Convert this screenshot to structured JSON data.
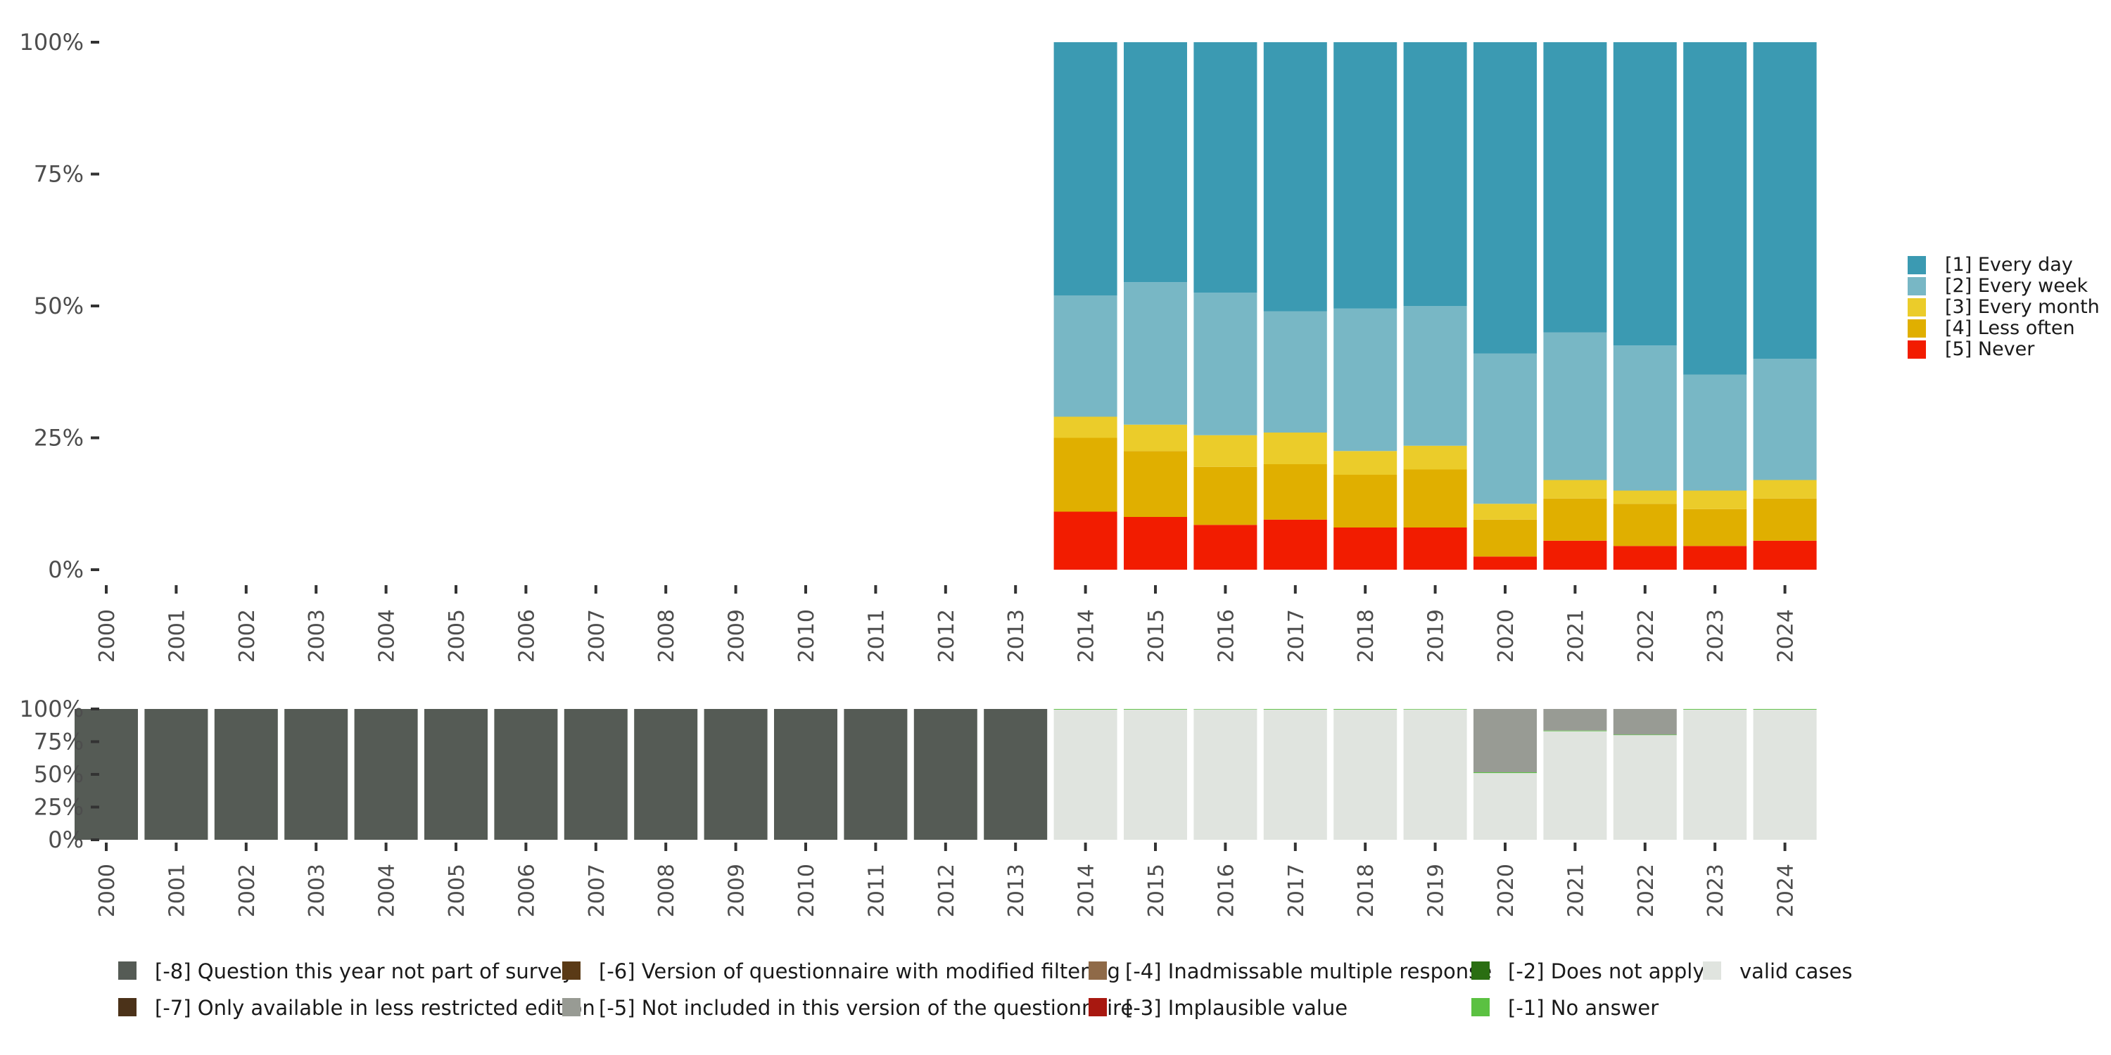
{
  "chart_data": [
    {
      "type": "bar",
      "stacked": true,
      "percent": true,
      "title": "",
      "xlabel": "",
      "ylabel": "",
      "ylim": [
        0,
        100
      ],
      "y_ticks": [
        "0%",
        "25%",
        "50%",
        "75%",
        "100%"
      ],
      "categories": [
        "2000",
        "2001",
        "2002",
        "2003",
        "2004",
        "2005",
        "2006",
        "2007",
        "2008",
        "2009",
        "2010",
        "2011",
        "2012",
        "2013",
        "2014",
        "2015",
        "2016",
        "2017",
        "2018",
        "2019",
        "2020",
        "2021",
        "2022",
        "2023",
        "2024"
      ],
      "legend_position": "right",
      "series": [
        {
          "name": "[5] Never",
          "color": "#f21c00",
          "values": [
            null,
            null,
            null,
            null,
            null,
            null,
            null,
            null,
            null,
            null,
            null,
            null,
            null,
            null,
            11,
            10,
            8.5,
            9.5,
            8,
            8,
            2.5,
            5.5,
            4.5,
            4.5,
            5.5
          ]
        },
        {
          "name": "[4] Less often",
          "color": "#e0af00",
          "values": [
            null,
            null,
            null,
            null,
            null,
            null,
            null,
            null,
            null,
            null,
            null,
            null,
            null,
            null,
            14,
            12.5,
            11,
            10.5,
            10,
            11,
            7,
            8,
            8,
            7,
            8
          ]
        },
        {
          "name": "[3] Every month",
          "color": "#ebcc2a",
          "values": [
            null,
            null,
            null,
            null,
            null,
            null,
            null,
            null,
            null,
            null,
            null,
            null,
            null,
            null,
            4,
            5,
            6,
            6,
            4.5,
            4.5,
            3,
            3.5,
            2.5,
            3.5,
            3.5
          ]
        },
        {
          "name": "[2] Every week",
          "color": "#78b7c5",
          "values": [
            null,
            null,
            null,
            null,
            null,
            null,
            null,
            null,
            null,
            null,
            null,
            null,
            null,
            null,
            23,
            27,
            27,
            23,
            27,
            26.5,
            28.5,
            28,
            27.5,
            22,
            23
          ]
        },
        {
          "name": "[1] Every day",
          "color": "#3b9ab2",
          "values": [
            null,
            null,
            null,
            null,
            null,
            null,
            null,
            null,
            null,
            null,
            null,
            null,
            null,
            null,
            48,
            45.5,
            47.5,
            51,
            50.5,
            50,
            59,
            55,
            57.5,
            63,
            60
          ]
        }
      ]
    },
    {
      "type": "bar",
      "stacked": true,
      "percent": true,
      "title": "",
      "xlabel": "",
      "ylabel": "",
      "ylim": [
        0,
        100
      ],
      "y_ticks": [
        "0%",
        "25%",
        "50%",
        "75%",
        "100%"
      ],
      "categories": [
        "2000",
        "2001",
        "2002",
        "2003",
        "2004",
        "2005",
        "2006",
        "2007",
        "2008",
        "2009",
        "2010",
        "2011",
        "2012",
        "2013",
        "2014",
        "2015",
        "2016",
        "2017",
        "2018",
        "2019",
        "2020",
        "2021",
        "2022",
        "2023",
        "2024"
      ],
      "legend_position": "bottom",
      "series": [
        {
          "name": "valid cases",
          "color": "#e0e4df",
          "values": [
            0,
            0,
            0,
            0,
            0,
            0,
            0,
            0,
            0,
            0,
            0,
            0,
            0,
            0,
            99.5,
            99.5,
            99.7,
            99.5,
            99.5,
            99.6,
            51,
            83,
            80,
            99.5,
            99.5
          ]
        },
        {
          "name": "[-1] No answer",
          "color": "#5bc142",
          "values": [
            0,
            0,
            0,
            0,
            0,
            0,
            0,
            0,
            0,
            0,
            0,
            0,
            0,
            0,
            0.5,
            0.5,
            0.3,
            0.5,
            0.5,
            0.4,
            0.6,
            0.5,
            0.4,
            0.5,
            0.5
          ]
        },
        {
          "name": "[-2] Does not apply",
          "color": "#2a6e12",
          "values": [
            0,
            0,
            0,
            0,
            0,
            0,
            0,
            0,
            0,
            0,
            0,
            0,
            0,
            0,
            0,
            0,
            0,
            0,
            0,
            0,
            0,
            0,
            0,
            0,
            0
          ]
        },
        {
          "name": "[-3] Implausible value",
          "color": "#a81810",
          "values": [
            0,
            0,
            0,
            0,
            0,
            0,
            0,
            0,
            0,
            0,
            0,
            0,
            0,
            0,
            0,
            0,
            0,
            0,
            0,
            0,
            0,
            0,
            0,
            0,
            0
          ]
        },
        {
          "name": "[-4] Inadmissable multiple response",
          "color": "#8f6a48",
          "values": [
            0,
            0,
            0,
            0,
            0,
            0,
            0,
            0,
            0,
            0,
            0,
            0,
            0,
            0,
            0,
            0,
            0,
            0,
            0,
            0,
            0,
            0,
            0,
            0,
            0
          ]
        },
        {
          "name": "[-5] Not included in this version of the questionnaire",
          "color": "#989b94",
          "values": [
            0,
            0,
            0,
            0,
            0,
            0,
            0,
            0,
            0,
            0,
            0,
            0,
            0,
            0,
            0,
            0,
            0,
            0,
            0,
            0,
            48.4,
            16.5,
            19.6,
            0,
            0
          ]
        },
        {
          "name": "[-6] Version of questionnaire with modified filtering",
          "color": "#5a3a16",
          "values": [
            0,
            0,
            0,
            0,
            0,
            0,
            0,
            0,
            0,
            0,
            0,
            0,
            0,
            0,
            0,
            0,
            0,
            0,
            0,
            0,
            0,
            0,
            0,
            0,
            0
          ]
        },
        {
          "name": "[-7] Only available in less restricted edition",
          "color": "#4b3219",
          "values": [
            0,
            0,
            0,
            0,
            0,
            0,
            0,
            0,
            0,
            0,
            0,
            0,
            0,
            0,
            0,
            0,
            0,
            0,
            0,
            0,
            0,
            0,
            0,
            0,
            0
          ]
        },
        {
          "name": "[-8] Question this year not part of survey",
          "color": "#555b55",
          "values": [
            100,
            100,
            100,
            100,
            100,
            100,
            100,
            100,
            100,
            100,
            100,
            100,
            100,
            100,
            0,
            0,
            0,
            0,
            0,
            0,
            0,
            0,
            0,
            0,
            0
          ]
        }
      ]
    }
  ],
  "legends": {
    "top": [
      "[1] Every day",
      "[2] Every week",
      "[3] Every month",
      "[4] Less often",
      "[5] Never"
    ],
    "bottom": {
      "row1": [
        "[-8] Question this year not part of survey",
        "[-6] Version of questionnaire with modified filtering",
        "[-4] Inadmissable multiple response",
        "[-2] Does not apply",
        "valid cases"
      ],
      "row2": [
        "[-7] Only available in less restricted edition",
        "[-5] Not included in this version of the questionnaire",
        "[-3] Implausible value",
        "[-1] No answer"
      ]
    }
  }
}
